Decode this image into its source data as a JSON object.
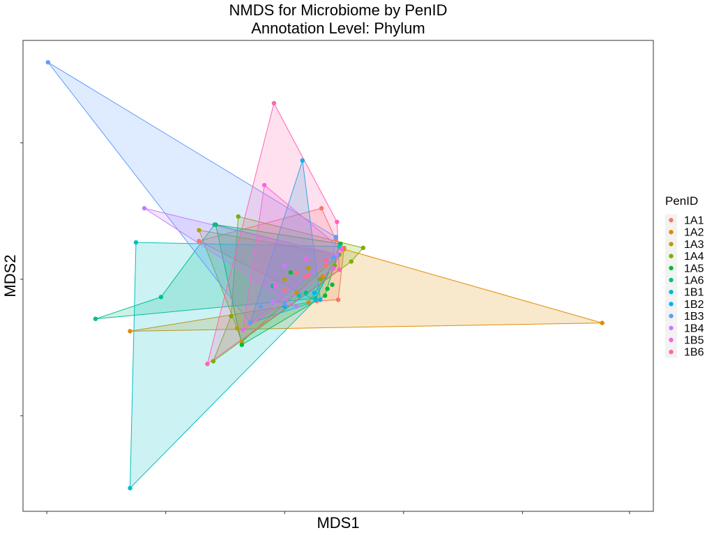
{
  "chart_data": {
    "type": "scatter",
    "title": "NMDS for Microbiome by PenID",
    "subtitle": "Annotation Level: Phylum",
    "xlabel": "MDS1",
    "ylabel": "MDS2",
    "xlim": [
      -1.0,
      4.3
    ],
    "ylim": [
      -1.7,
      1.75
    ],
    "x_ticks": [
      -0.8,
      0.2,
      1.2,
      2.2,
      3.2,
      4.1
    ],
    "y_ticks": [
      -1.0,
      0.0,
      1.0
    ],
    "tick_labels_shown": false,
    "grid": false,
    "legend": {
      "title": "PenID",
      "position": "right"
    },
    "series": [
      {
        "name": "1A1",
        "color": "#F8766D",
        "hull": [
          [
            1.51,
            0.52
          ],
          [
            1.63,
            0.29
          ],
          [
            1.7,
            0.23
          ],
          [
            1.65,
            -0.15
          ],
          [
            1.47,
            -0.16
          ],
          [
            0.48,
            0.28
          ]
        ],
        "points": [
          [
            1.51,
            0.52
          ],
          [
            1.63,
            0.29
          ],
          [
            1.7,
            0.23
          ],
          [
            1.65,
            -0.15
          ],
          [
            1.47,
            -0.16
          ],
          [
            0.48,
            0.28
          ],
          [
            1.3,
            0.05
          ],
          [
            1.2,
            -0.08
          ],
          [
            1.55,
            0.1
          ],
          [
            1.38,
            0.02
          ]
        ]
      },
      {
        "name": "1A2",
        "color": "#DE8C00",
        "hull": [
          [
            3.87,
            -0.32
          ],
          [
            -0.1,
            -0.38
          ],
          [
            1.4,
            -0.17
          ],
          [
            1.7,
            0.22
          ]
        ],
        "points": [
          [
            3.87,
            -0.32
          ],
          [
            -0.1,
            -0.38
          ],
          [
            1.4,
            -0.17
          ],
          [
            1.7,
            0.22
          ],
          [
            1.52,
            0.02
          ],
          [
            1.3,
            -0.1
          ]
        ]
      },
      {
        "name": "1A3",
        "color": "#B79F00",
        "hull": [
          [
            0.48,
            0.36
          ],
          [
            1.66,
            0.18
          ],
          [
            0.84,
            -0.46
          ],
          [
            0.8,
            -0.36
          ]
        ],
        "points": [
          [
            0.48,
            0.36
          ],
          [
            1.66,
            0.18
          ],
          [
            0.84,
            -0.46
          ],
          [
            0.8,
            -0.36
          ],
          [
            1.2,
            0.0
          ],
          [
            1.4,
            0.08
          ]
        ]
      },
      {
        "name": "1A4",
        "color": "#7CAE00",
        "hull": [
          [
            0.81,
            0.46
          ],
          [
            1.86,
            0.23
          ],
          [
            1.76,
            0.13
          ],
          [
            0.6,
            -0.6
          ],
          [
            0.75,
            -0.27
          ]
        ],
        "points": [
          [
            0.81,
            0.46
          ],
          [
            1.86,
            0.23
          ],
          [
            1.76,
            0.13
          ],
          [
            0.6,
            -0.6
          ],
          [
            0.75,
            -0.27
          ],
          [
            1.5,
            0.0
          ],
          [
            1.62,
            0.1
          ]
        ]
      },
      {
        "name": "1A5",
        "color": "#00BA38",
        "hull": [
          [
            0.62,
            0.4
          ],
          [
            1.67,
            0.26
          ],
          [
            1.54,
            -0.12
          ],
          [
            0.84,
            -0.48
          ]
        ],
        "points": [
          [
            0.62,
            0.4
          ],
          [
            1.67,
            0.26
          ],
          [
            1.54,
            -0.12
          ],
          [
            0.84,
            -0.48
          ],
          [
            1.56,
            -0.07
          ],
          [
            1.6,
            -0.04
          ],
          [
            1.25,
            0.05
          ]
        ]
      },
      {
        "name": "1A6",
        "color": "#00C08B",
        "hull": [
          [
            0.61,
            0.4
          ],
          [
            1.65,
            0.18
          ],
          [
            1.46,
            -0.14
          ],
          [
            -0.39,
            -0.29
          ],
          [
            0.16,
            -0.13
          ]
        ],
        "points": [
          [
            0.61,
            0.4
          ],
          [
            1.65,
            0.18
          ],
          [
            1.46,
            -0.14
          ],
          [
            -0.39,
            -0.29
          ],
          [
            0.16,
            -0.13
          ],
          [
            1.38,
            -0.1
          ],
          [
            1.1,
            -0.05
          ]
        ]
      },
      {
        "name": "1B1",
        "color": "#00BFC4",
        "hull": [
          [
            -0.05,
            0.27
          ],
          [
            1.66,
            0.24
          ],
          [
            1.46,
            -0.15
          ],
          [
            -0.1,
            -1.53
          ]
        ],
        "points": [
          [
            -0.05,
            0.27
          ],
          [
            1.66,
            0.24
          ],
          [
            1.46,
            -0.15
          ],
          [
            -0.1,
            -1.53
          ],
          [
            1.32,
            -0.12
          ]
        ]
      },
      {
        "name": "1B2",
        "color": "#00B4F0",
        "hull": [
          [
            1.35,
            0.87
          ],
          [
            1.5,
            -0.15
          ],
          [
            0.91,
            -0.32
          ]
        ],
        "points": [
          [
            1.35,
            0.87
          ],
          [
            1.5,
            -0.15
          ],
          [
            0.91,
            -0.32
          ],
          [
            1.45,
            -0.1
          ],
          [
            1.2,
            -0.2
          ]
        ]
      },
      {
        "name": "1B3",
        "color": "#619CFF",
        "hull": [
          [
            -0.79,
            1.59
          ],
          [
            1.63,
            0.31
          ],
          [
            1.61,
            0.16
          ],
          [
            0.91,
            -0.32
          ]
        ],
        "points": [
          [
            -0.79,
            1.59
          ],
          [
            1.63,
            0.31
          ],
          [
            1.61,
            0.16
          ],
          [
            0.91,
            -0.32
          ],
          [
            1.0,
            -0.2
          ],
          [
            1.2,
            -0.18
          ]
        ]
      },
      {
        "name": "1B4",
        "color": "#C77CFF",
        "hull": [
          [
            0.02,
            0.52
          ],
          [
            1.64,
            0.18
          ],
          [
            1.1,
            -0.17
          ],
          [
            1.3,
            -0.2
          ]
        ],
        "points": [
          [
            0.02,
            0.52
          ],
          [
            1.64,
            0.18
          ],
          [
            1.1,
            -0.17
          ],
          [
            1.3,
            -0.2
          ],
          [
            1.2,
            0.1
          ]
        ]
      },
      {
        "name": "1B5",
        "color": "#F564E3",
        "hull": [
          [
            1.03,
            0.69
          ],
          [
            1.68,
            0.22
          ],
          [
            1.61,
            0.08
          ],
          [
            0.85,
            -0.37
          ]
        ],
        "points": [
          [
            1.03,
            0.69
          ],
          [
            1.68,
            0.22
          ],
          [
            1.61,
            0.08
          ],
          [
            0.85,
            -0.37
          ],
          [
            1.38,
            0.15
          ],
          [
            1.12,
            -0.05
          ]
        ]
      },
      {
        "name": "1B6",
        "color": "#FF64B0",
        "hull": [
          [
            1.11,
            1.29
          ],
          [
            1.64,
            0.42
          ],
          [
            1.66,
            0.07
          ],
          [
            0.55,
            -0.62
          ]
        ],
        "points": [
          [
            1.11,
            1.29
          ],
          [
            1.64,
            0.42
          ],
          [
            1.66,
            0.07
          ],
          [
            0.55,
            -0.62
          ],
          [
            1.4,
            0.03
          ],
          [
            1.55,
            0.14
          ]
        ]
      }
    ]
  }
}
